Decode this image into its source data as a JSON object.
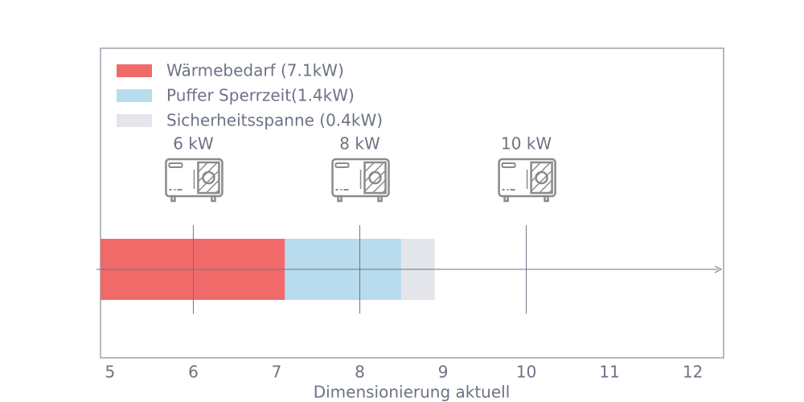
{
  "chart_data": {
    "type": "stacked-hbar",
    "x_label": "Dimensionierung aktuell",
    "series": [
      {
        "name": "Wärmebedarf (7.1kW)",
        "color": "#f16a6a",
        "value": 7.1
      },
      {
        "name": "Puffer Sperrzeit(1.4kW)",
        "color": "#b8dcee",
        "value": 1.4
      },
      {
        "name": "Sicherheitsspanne (0.4kW)",
        "color": "#e4e5ea",
        "value": 0.4
      }
    ],
    "markers": [
      {
        "value": 6,
        "label": "6 kW"
      },
      {
        "value": 8,
        "label": "8 kW"
      },
      {
        "value": 10,
        "label": "10 kW"
      }
    ],
    "xlim": [
      4.885,
      12.37
    ],
    "xticks": [
      5,
      6,
      7,
      8,
      9,
      10,
      11,
      12
    ],
    "legend": "upper left"
  }
}
